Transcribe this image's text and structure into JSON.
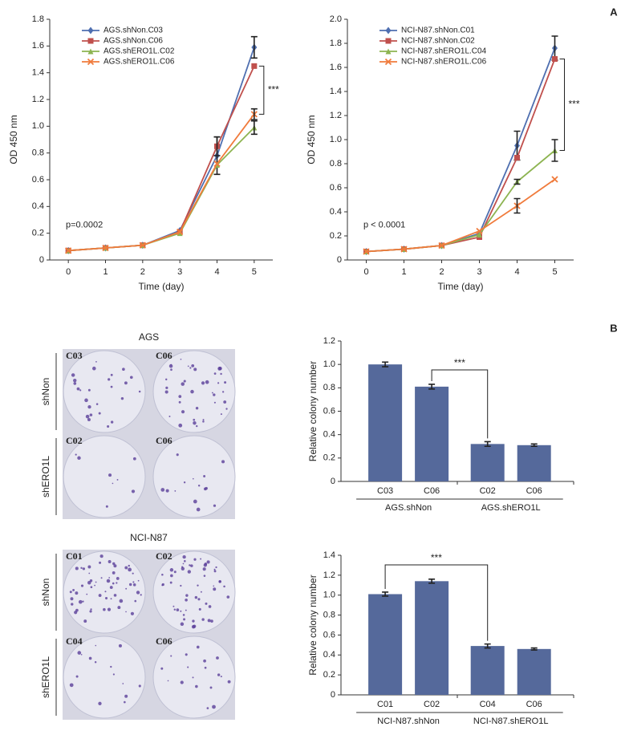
{
  "panel_labels": [
    "A",
    "B"
  ],
  "images": [
    {
      "title": "AGS",
      "rows": [
        "shNon",
        "shERO1L"
      ],
      "wells": [
        "C03",
        "C06",
        "C02",
        "C06"
      ]
    },
    {
      "title": "NCI-N87",
      "rows": [
        "shNon",
        "shERO1L"
      ],
      "wells": [
        "C01",
        "C02",
        "C04",
        "C06"
      ]
    }
  ],
  "chart_data": [
    {
      "type": "line",
      "xlabel": "Time (day)",
      "ylabel": "OD 450 nm",
      "x": [
        0,
        1,
        2,
        3,
        4,
        5
      ],
      "xlim": [
        -0.5,
        5.5
      ],
      "xticks": [
        0,
        1,
        2,
        3,
        4,
        5
      ],
      "ylim": [
        0,
        1.8
      ],
      "yticks": [
        0,
        0.2,
        0.4,
        0.6,
        0.8,
        {
          "value": 1,
          "label": "1.0"
        },
        1.2,
        1.4,
        1.6,
        1.8
      ],
      "annotations": [
        "p=0.0002",
        "***"
      ],
      "series": [
        {
          "name": "AGS.shNon.C03",
          "color": "#4f6fb0",
          "marker": "diamond",
          "values": [
            0.07,
            0.09,
            0.11,
            0.22,
            0.78,
            1.59
          ],
          "errors": [
            null,
            null,
            null,
            null,
            0.14,
            0.08
          ]
        },
        {
          "name": "AGS.shNon.C06",
          "color": "#c0504d",
          "marker": "square",
          "values": [
            0.07,
            0.09,
            0.11,
            0.21,
            0.85,
            1.45
          ],
          "errors": [
            null,
            null,
            null,
            null,
            0.07,
            null
          ]
        },
        {
          "name": "AGS.shERO1L.C02",
          "color": "#8db451",
          "marker": "triangle",
          "values": [
            0.07,
            0.09,
            0.11,
            0.2,
            0.71,
            0.99
          ],
          "errors": [
            null,
            null,
            null,
            null,
            null,
            0.05
          ]
        },
        {
          "name": "AGS.shERO1L.C06",
          "color": "#f07b3c",
          "marker": "x",
          "values": [
            0.07,
            0.09,
            0.11,
            0.21,
            0.72,
            1.09
          ],
          "errors": [
            null,
            null,
            null,
            null,
            null,
            0.04
          ]
        }
      ]
    },
    {
      "type": "line",
      "xlabel": "Time (day)",
      "ylabel": "OD 450 nm",
      "x": [
        0,
        1,
        2,
        3,
        4,
        5
      ],
      "xlim": [
        -0.5,
        5.5
      ],
      "xticks": [
        0,
        1,
        2,
        3,
        4,
        5
      ],
      "ylim": [
        0,
        2
      ],
      "yticks": [
        0,
        0.2,
        0.4,
        0.6,
        0.8,
        {
          "value": 1,
          "label": "1.0"
        },
        1.2,
        1.4,
        1.6,
        1.8,
        {
          "value": 2,
          "label": "2.0"
        }
      ],
      "annotations": [
        "p < 0.0001",
        "***"
      ],
      "series": [
        {
          "name": "NCI-N87.shNon.C01",
          "color": "#4f6fb0",
          "marker": "diamond",
          "values": [
            0.07,
            0.09,
            0.12,
            0.22,
            0.95,
            1.76
          ],
          "errors": [
            null,
            null,
            null,
            null,
            0.12,
            0.1
          ]
        },
        {
          "name": "NCI-N87.shNon.C02",
          "color": "#c0504d",
          "marker": "square",
          "values": [
            0.07,
            0.09,
            0.12,
            0.19,
            0.85,
            1.67
          ],
          "errors": [
            null,
            null,
            null,
            null,
            null,
            null
          ]
        },
        {
          "name": "NCI-N87.shERO1L.C04",
          "color": "#8db451",
          "marker": "triangle",
          "values": [
            0.07,
            0.09,
            0.12,
            0.21,
            0.65,
            0.91
          ],
          "errors": [
            null,
            null,
            null,
            null,
            0.02,
            0.09
          ]
        },
        {
          "name": "NCI-N87.shERO1L.C06",
          "color": "#f07b3c",
          "marker": "x",
          "values": [
            0.07,
            0.09,
            0.12,
            0.24,
            0.45,
            0.67
          ],
          "errors": [
            null,
            null,
            null,
            null,
            0.06,
            null
          ]
        }
      ]
    },
    {
      "type": "bar",
      "ylabel": "Relative colony number",
      "color": "#55699b",
      "categories": [
        "C03",
        "C06",
        "C02",
        "C06"
      ],
      "groups": [
        "AGS.shNon",
        "AGS.shERO1L"
      ],
      "values": [
        1.0,
        0.81,
        0.32,
        0.31
      ],
      "errors": [
        0.02,
        0.02,
        0.02,
        0.01
      ],
      "ylim": [
        0,
        1.2
      ],
      "yticks": [
        0,
        0.2,
        0.4,
        0.6,
        0.8,
        {
          "value": 1,
          "label": "1.0"
        },
        1.2
      ],
      "annotations": [
        "***"
      ]
    },
    {
      "type": "bar",
      "ylabel": "Relative colony number",
      "color": "#55699b",
      "categories": [
        "C01",
        "C02",
        "C04",
        "C06"
      ],
      "groups": [
        "NCI-N87.shNon",
        "NCI-N87.shERO1L"
      ],
      "values": [
        1.01,
        1.14,
        0.49,
        0.46
      ],
      "errors": [
        0.02,
        0.02,
        0.02,
        0.01
      ],
      "ylim": [
        0,
        1.4
      ],
      "yticks": [
        0,
        0.2,
        0.4,
        0.6,
        0.8,
        {
          "value": 1,
          "label": "1.0"
        },
        1.2,
        1.4
      ],
      "annotations": [
        "***"
      ]
    }
  ]
}
